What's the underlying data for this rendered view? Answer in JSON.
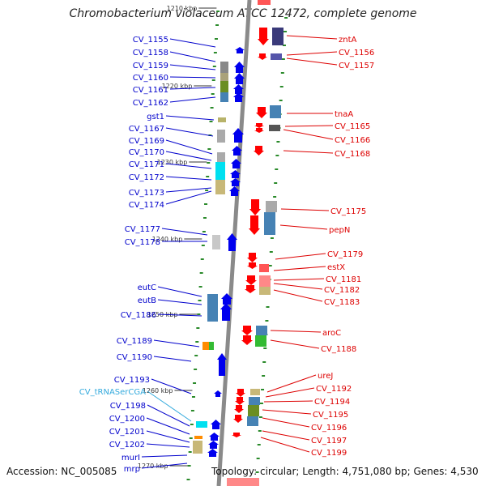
{
  "title": "Chromobacterium violaceum ATCC 12472, complete genome",
  "footer": {
    "accession": "Accession: NC_005085",
    "topology": "Topology: circular; Length: 4,751,080 bp; Genes: 4,530"
  },
  "colors": {
    "forward_label": "#0000cc",
    "reverse_label": "#dd0000",
    "rna_label": "#33aadd",
    "backbone": "#8a8a8a",
    "tick": "#2a8a2a"
  },
  "kbp_marks": [
    "1210 kbp",
    "1220 kbp",
    "1230 kbp",
    "1240 kbp",
    "1250 kbp",
    "1260 kbp",
    "1270 kbp"
  ],
  "left_labels": [
    "CV_1155",
    "CV_1158",
    "CV_1159",
    "CV_1160",
    "CV_1161",
    "CV_1162",
    "gst1",
    "CV_1167",
    "CV_1169",
    "CV_1170",
    "CV_1171",
    "CV_1172",
    "CV_1173",
    "CV_1174",
    "CV_1177",
    "CV_1178",
    "eutC",
    "eutB",
    "CV_1186",
    "CV_1189",
    "CV_1190",
    "CV_1193",
    "CV_tRNASerCGA",
    "CV_1198",
    "CV_1200",
    "CV_1201",
    "CV_1202",
    "murI",
    "mrp"
  ],
  "right_labels": [
    "zntA",
    "CV_1156",
    "CV_1157",
    "tnaA",
    "CV_1165",
    "CV_1166",
    "CV_1168",
    "CV_1175",
    "pepN",
    "CV_1179",
    "estX",
    "CV_1181",
    "CV_1182",
    "CV_1183",
    "aroC",
    "CV_1188",
    "ureJ",
    "CV_1192",
    "CV_1194",
    "CV_1195",
    "CV_1196",
    "CV_1197",
    "CV_1199"
  ]
}
